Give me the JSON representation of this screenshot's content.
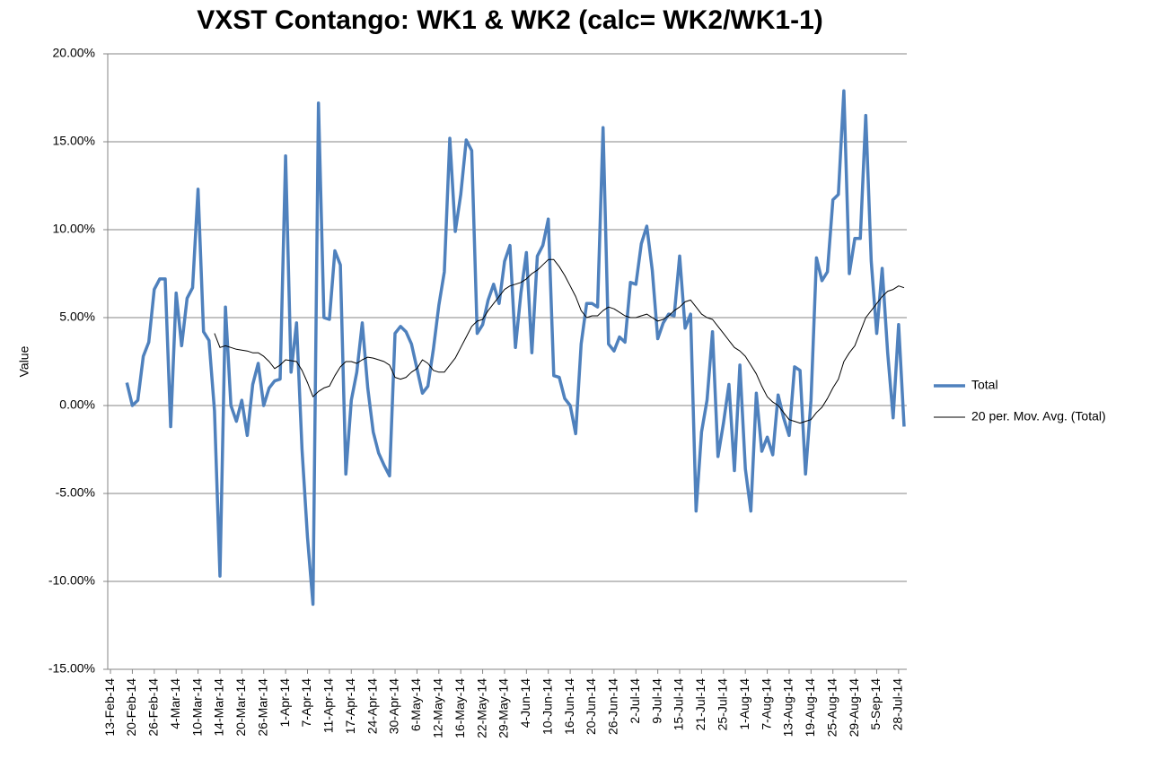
{
  "chart_data": {
    "type": "line",
    "title": "VXST Contango: WK1 & WK2 (calc= WK2/WK1-1)",
    "y_label": "Value",
    "categories": [
      "13-Feb-14",
      null,
      null,
      null,
      "20-Feb-14",
      null,
      null,
      null,
      "26-Feb-14",
      null,
      null,
      null,
      "4-Mar-14",
      null,
      null,
      null,
      "10-Mar-14",
      null,
      null,
      null,
      "14-Mar-14",
      null,
      null,
      null,
      "20-Mar-14",
      null,
      null,
      null,
      "26-Mar-14",
      null,
      null,
      null,
      "1-Apr-14",
      null,
      null,
      null,
      "7-Apr-14",
      null,
      null,
      null,
      "11-Apr-14",
      null,
      null,
      null,
      "17-Apr-14",
      null,
      null,
      null,
      "24-Apr-14",
      null,
      null,
      null,
      "30-Apr-14",
      null,
      null,
      null,
      "6-May-14",
      null,
      null,
      null,
      "12-May-14",
      null,
      null,
      null,
      "16-May-14",
      null,
      null,
      null,
      "22-May-14",
      null,
      null,
      null,
      "29-May-14",
      null,
      null,
      null,
      "4-Jun-14",
      null,
      null,
      null,
      "10-Jun-14",
      null,
      null,
      null,
      "16-Jun-14",
      null,
      null,
      null,
      "20-Jun-14",
      null,
      null,
      null,
      "26-Jun-14",
      null,
      null,
      null,
      "2-Jul-14",
      null,
      null,
      null,
      "9-Jul-14",
      null,
      null,
      null,
      "15-Jul-14",
      null,
      null,
      null,
      "21-Jul-14",
      null,
      null,
      null,
      "25-Jul-14",
      null,
      null,
      null,
      "1-Aug-14",
      null,
      null,
      null,
      "7-Aug-14",
      null,
      null,
      null,
      "13-Aug-14",
      null,
      null,
      null,
      "19-Aug-14",
      null,
      null,
      null,
      "25-Aug-14",
      null,
      null,
      null,
      "29-Aug-14",
      null,
      null,
      null,
      "5-Sep-14",
      null,
      null,
      null,
      "28-Jul-14",
      null
    ],
    "series": [
      {
        "name": "Total",
        "color": "#4f81bd",
        "values": [
          null,
          null,
          null,
          1.3,
          0,
          0.3,
          2.8,
          3.6,
          6.6,
          7.2,
          7.2,
          -1.2,
          6.4,
          3.4,
          6.1,
          6.7,
          12.3,
          4.2,
          3.7,
          -0.3,
          -9.7,
          5.6,
          0,
          -0.9,
          0.3,
          -1.7,
          1.2,
          2.4,
          0,
          1.0,
          1.4,
          1.5,
          14.2,
          1.9,
          4.7,
          -2.5,
          -7.5,
          -11.3,
          17.2,
          5.0,
          4.9,
          8.8,
          8.0,
          -3.9,
          0.3,
          1.9,
          4.7,
          1.0,
          -1.5,
          -2.7,
          -3.4,
          -4.0,
          4.1,
          4.5,
          4.2,
          3.5,
          2.1,
          0.7,
          1.1,
          3.2,
          5.7,
          7.6,
          15.2,
          9.9,
          12.0,
          15.1,
          14.5,
          4.1,
          4.6,
          6.0,
          6.9,
          5.8,
          8.2,
          9.1,
          3.3,
          6.4,
          8.7,
          3.0,
          8.5,
          9.1,
          10.6,
          1.7,
          1.6,
          0.4,
          0,
          -1.6,
          3.5,
          5.8,
          5.8,
          5.6,
          15.8,
          3.5,
          3.1,
          3.9,
          3.6,
          7.0,
          6.9,
          9.2,
          10.2,
          7.7,
          3.8,
          4.7,
          5.2,
          5.1,
          8.5,
          4.4,
          5.2,
          -6.0,
          -1.5,
          0.3,
          4.2,
          -2.9,
          -1.0,
          1.2,
          -3.7,
          2.3,
          -3.6,
          -6.0,
          0.7,
          -2.6,
          -1.8,
          -2.8,
          0.6,
          -0.7,
          -1.7,
          2.2,
          2.0,
          -3.9,
          0.3,
          8.4,
          7.1,
          7.6,
          11.7,
          12.0,
          17.9,
          7.5,
          9.5,
          9.5,
          16.5,
          8.2,
          4.1,
          7.8,
          3.0,
          -0.7,
          4.6,
          -1.2
        ]
      },
      {
        "name": "20 per. Mov. Avg. (Total)",
        "color": "#000000",
        "values": [
          null,
          null,
          null,
          null,
          null,
          null,
          null,
          null,
          null,
          null,
          null,
          null,
          null,
          null,
          null,
          null,
          null,
          null,
          null,
          4.1,
          3.3,
          3.4,
          3.3,
          3.2,
          3.15,
          3.1,
          3.0,
          3.0,
          2.8,
          2.5,
          2.1,
          2.3,
          2.6,
          2.55,
          2.5,
          2.0,
          1.3,
          0.5,
          0.8,
          1.0,
          1.1,
          1.7,
          2.2,
          2.5,
          2.5,
          2.4,
          2.6,
          2.75,
          2.7,
          2.6,
          2.5,
          2.3,
          1.6,
          1.5,
          1.6,
          1.9,
          2.1,
          2.6,
          2.4,
          2.0,
          1.9,
          1.9,
          2.3,
          2.7,
          3.3,
          3.9,
          4.5,
          4.8,
          4.9,
          5.4,
          5.8,
          6.2,
          6.6,
          6.8,
          6.9,
          7.0,
          7.2,
          7.5,
          7.7,
          8.0,
          8.3,
          8.3,
          7.9,
          7.4,
          6.8,
          6.2,
          5.4,
          5.0,
          5.1,
          5.1,
          5.4,
          5.6,
          5.5,
          5.3,
          5.1,
          5.0,
          5.0,
          5.1,
          5.2,
          5.0,
          4.8,
          4.9,
          5.1,
          5.4,
          5.6,
          5.9,
          6.0,
          5.6,
          5.2,
          5.0,
          4.9,
          4.5,
          4.1,
          3.7,
          3.3,
          3.1,
          2.8,
          2.3,
          1.8,
          1.1,
          0.5,
          0.2,
          0,
          -0.4,
          -0.8,
          -0.9,
          -1.0,
          -0.9,
          -0.8,
          -0.4,
          -0.1,
          0.4,
          1.0,
          1.5,
          2.5,
          3.0,
          3.4,
          4.2,
          5.0,
          5.4,
          5.8,
          6.2,
          6.5,
          6.6,
          6.8,
          6.7
        ]
      }
    ],
    "ylim": [
      -15,
      20
    ],
    "yticks": [
      {
        "value": -15,
        "label": "-15.00%"
      },
      {
        "value": -10,
        "label": "-10.00%"
      },
      {
        "value": -5,
        "label": "-5.00%"
      },
      {
        "value": 0,
        "label": "0.00%"
      },
      {
        "value": 5,
        "label": "5.00%"
      },
      {
        "value": 10,
        "label": "10.00%"
      },
      {
        "value": 15,
        "label": "15.00%"
      },
      {
        "value": 20,
        "label": "20.00%"
      }
    ],
    "grid": true,
    "legend": "right"
  }
}
